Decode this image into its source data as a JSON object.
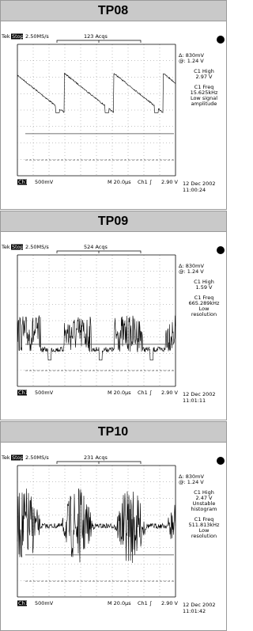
{
  "panels": [
    {
      "title": "TP08",
      "status": {
        "brand": "Tek",
        "mode": "Stop",
        "rate": "2.50MS/s",
        "acqs": "123 Acqs"
      },
      "readouts": [
        "Δ: 830mV",
        "@: 1.24 V"
      ],
      "measurements": [
        [
          "C1 High",
          "2.97 V"
        ],
        [
          "C1 Freq",
          "15.625kHz",
          "Low signal",
          "amplitude"
        ]
      ],
      "footer": {
        "channel": "Ch1",
        "scale": "500mV",
        "timebase": "M 20.0µs",
        "trigger": "Ch1 ∫",
        "level": "2.90 V",
        "date": "12 Dec 2002",
        "time": "11:00:24"
      }
    },
    {
      "title": "TP09",
      "status": {
        "brand": "Tek",
        "mode": "Stop",
        "rate": "2.50MS/s",
        "acqs": "524 Acqs"
      },
      "readouts": [
        "Δ: 830mV",
        "@: 1.24 V"
      ],
      "measurements": [
        [
          "C1 High",
          "1.59 V"
        ],
        [
          "C1 Freq",
          "665.289kHz",
          "Low",
          "resolution"
        ]
      ],
      "footer": {
        "channel": "Ch1",
        "scale": "500mV",
        "timebase": "M 20.0µs",
        "trigger": "Ch1 ∫",
        "level": "2.90 V",
        "date": "12 Dec 2002",
        "time": "11:01:11"
      }
    },
    {
      "title": "TP10",
      "status": {
        "brand": "Tek",
        "mode": "Stop",
        "rate": "2.50MS/s",
        "acqs": "231 Acqs"
      },
      "readouts": [
        "Δ: 830mV",
        "@: 1.24 V"
      ],
      "measurements": [
        [
          "C1 High",
          "2.47 V",
          "Unstable",
          "histogram"
        ],
        [
          "C1 Freq",
          "511.813kHz",
          "Low",
          "resolution"
        ]
      ],
      "footer": {
        "channel": "Ch1",
        "scale": "500mV",
        "timebase": "M 20.0µs",
        "trigger": "Ch1 ∫",
        "level": "2.90 V",
        "date": "12 Dec 2002",
        "time": "11:01:42"
      }
    }
  ]
}
